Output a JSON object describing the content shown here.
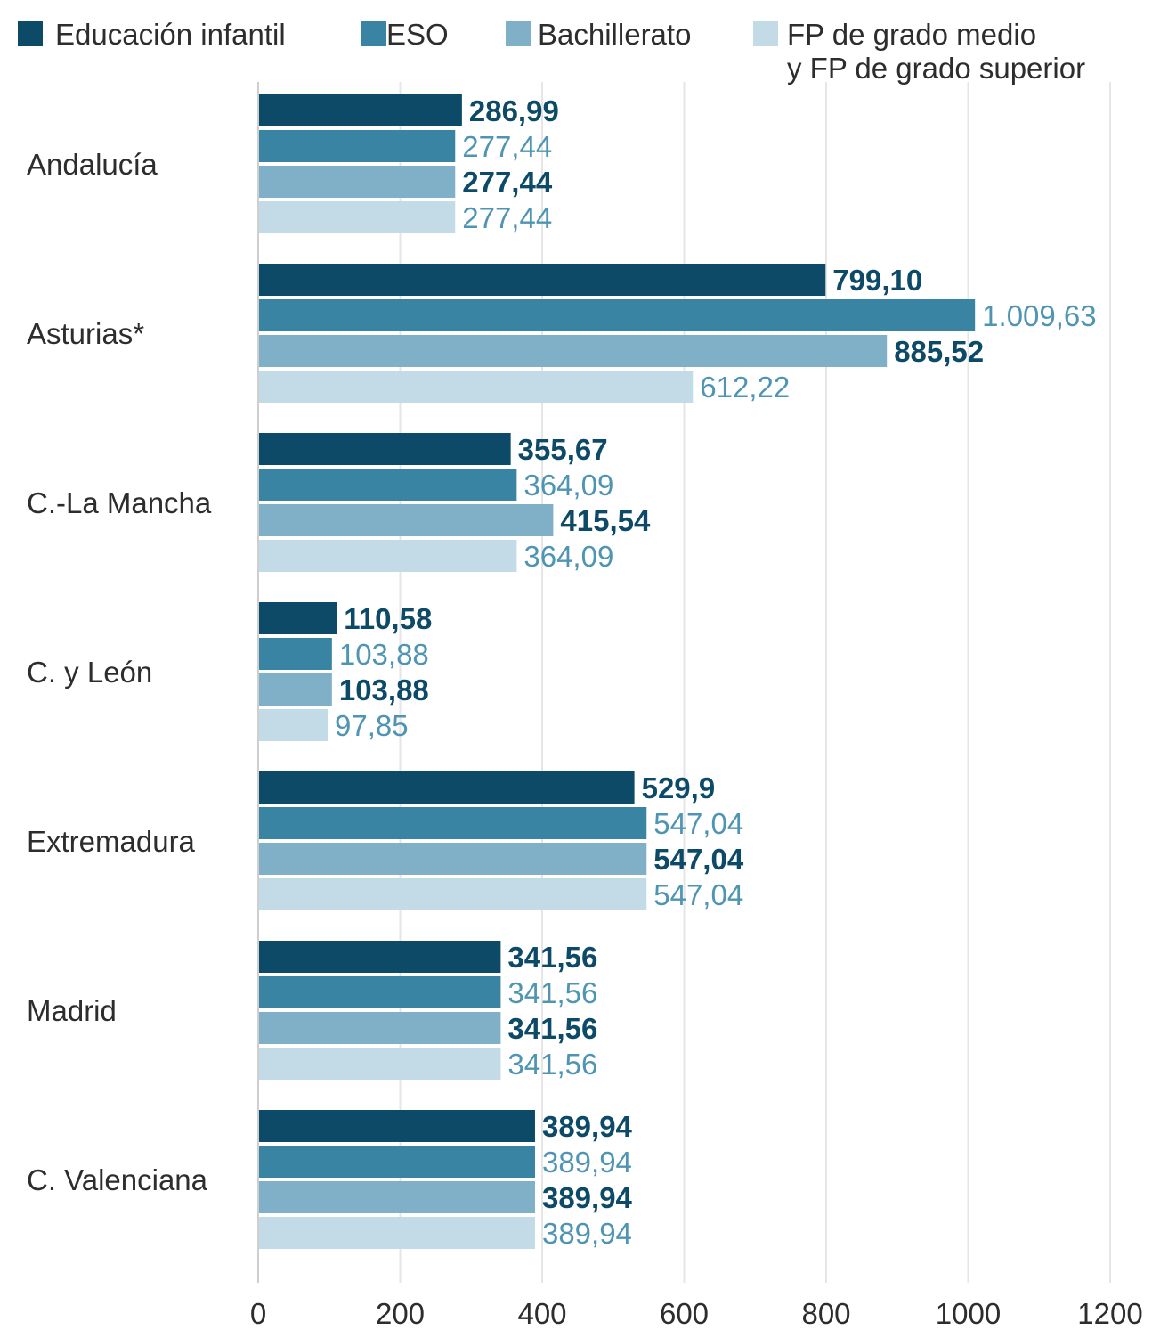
{
  "chart_data": {
    "type": "bar",
    "orientation": "horizontal",
    "categories": [
      "Andalucía",
      "Asturias*",
      "C.-La Mancha",
      "C. y León",
      "Extremadura",
      "Madrid",
      "C. Valenciana"
    ],
    "series": [
      {
        "name": "Educación infantil",
        "color": "#0d4a68",
        "values": [
          286.99,
          799.1,
          355.67,
          110.58,
          529.9,
          341.56,
          389.94
        ],
        "labels": [
          "286,99",
          "799,10",
          "355,67",
          "110,58",
          "529,9",
          "341,56",
          "389,94"
        ]
      },
      {
        "name": "ESO",
        "color": "#3a84a3",
        "values": [
          277.44,
          1009.63,
          364.09,
          103.88,
          547.04,
          341.56,
          389.94
        ],
        "labels": [
          "277,44",
          "1.009,63",
          "364,09",
          "103,88",
          "547,04",
          "341,56",
          "389,94"
        ]
      },
      {
        "name": "Bachillerato",
        "color": "#7fb0c8",
        "values": [
          277.44,
          885.52,
          415.54,
          103.88,
          547.04,
          341.56,
          389.94
        ],
        "labels": [
          "277,44",
          "885,52",
          "415,54",
          "103,88",
          "547,04",
          "341,56",
          "389,94"
        ]
      },
      {
        "name": "FP de grado medio y FP de grado superior",
        "legend_lines": [
          "FP de grado medio",
          "y FP de grado superior"
        ],
        "color": "#c2dbe6",
        "values": [
          277.44,
          612.22,
          364.09,
          97.85,
          547.04,
          341.56,
          389.94
        ],
        "labels": [
          "277,44",
          "612,22",
          "364,09",
          "97,85",
          "547,04",
          "341,56",
          "389,94"
        ]
      }
    ],
    "label_colors": {
      "dark": "#0d4a68",
      "light": "#4f95b3"
    },
    "x_ticks": [
      0,
      200,
      400,
      600,
      800,
      1000,
      1200
    ],
    "xlim": [
      0,
      1200
    ],
    "grid": "vertical",
    "gridline_color": "#e6e6e6",
    "axis_color": "#cfcfcf",
    "legend_position": "top",
    "title": "",
    "xlabel": "",
    "ylabel": ""
  }
}
